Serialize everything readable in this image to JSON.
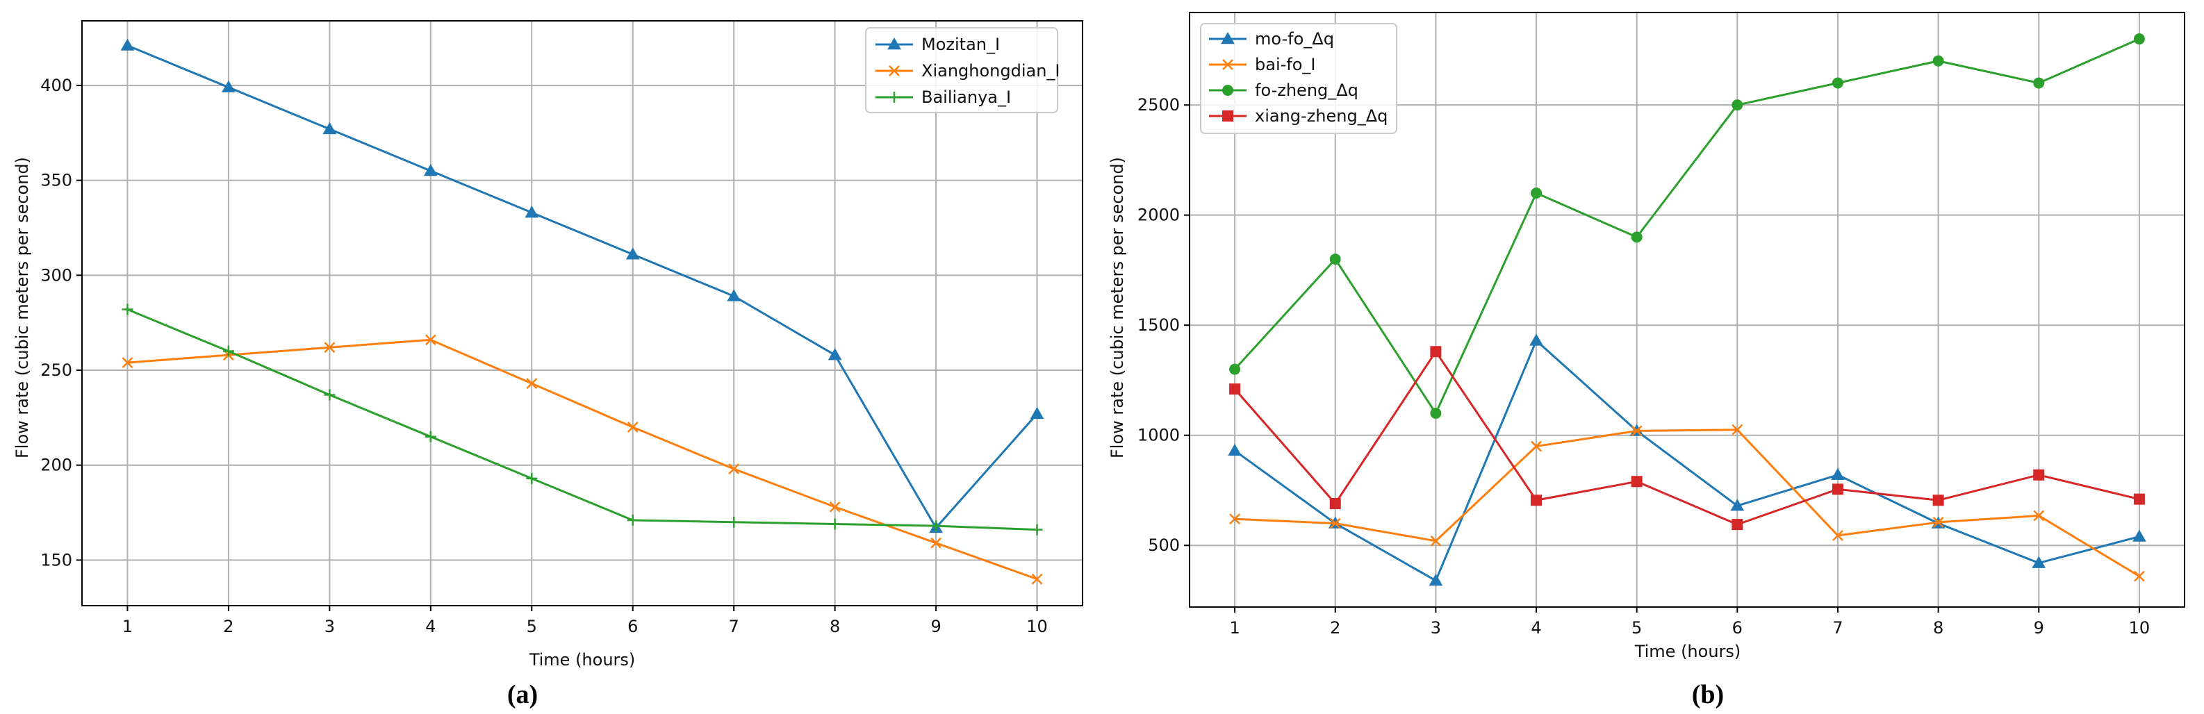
{
  "chart_data": [
    {
      "type": "line",
      "caption": "(a)",
      "title": "",
      "xlabel": "Time (hours)",
      "ylabel": "Flow rate (cubic meters per second)",
      "x": [
        1,
        2,
        3,
        4,
        5,
        6,
        7,
        8,
        9,
        10
      ],
      "xlim": [
        0.55,
        10.45
      ],
      "ylim": [
        126,
        434
      ],
      "xticks": [
        1,
        2,
        3,
        4,
        5,
        6,
        7,
        8,
        9,
        10
      ],
      "yticks": [
        150,
        200,
        250,
        300,
        350,
        400
      ],
      "grid": true,
      "legend_position": "top-right",
      "series": [
        {
          "name": "Mozitan_I",
          "color": "#1f77b4",
          "marker": "triangle",
          "values": [
            421,
            399,
            377,
            355,
            333,
            311,
            289,
            258,
            167,
            227
          ]
        },
        {
          "name": "Xianghongdian_I",
          "color": "#ff7f0e",
          "marker": "x",
          "values": [
            254,
            258,
            262,
            266,
            243,
            220,
            198,
            178,
            159,
            140
          ]
        },
        {
          "name": "Bailianya_I",
          "color": "#2ca02c",
          "marker": "plus",
          "values": [
            282,
            260,
            237,
            215,
            193,
            171,
            170,
            169,
            168,
            166
          ]
        }
      ]
    },
    {
      "type": "line",
      "caption": "(b)",
      "title": "",
      "xlabel": "Time (hours)",
      "ylabel": "Flow rate (cubic meters per second)",
      "x": [
        1,
        2,
        3,
        4,
        5,
        6,
        7,
        8,
        9,
        10
      ],
      "xlim": [
        0.55,
        10.45
      ],
      "ylim": [
        220,
        2920
      ],
      "xticks": [
        1,
        2,
        3,
        4,
        5,
        6,
        7,
        8,
        9,
        10
      ],
      "yticks": [
        500,
        1000,
        1500,
        2000,
        2500
      ],
      "grid": true,
      "legend_position": "top-left",
      "series": [
        {
          "name": "mo-fo_Δq",
          "color": "#1f77b4",
          "marker": "triangle",
          "values": [
            930,
            600,
            340,
            1430,
            1020,
            680,
            820,
            600,
            420,
            540
          ]
        },
        {
          "name": "bai-fo_I",
          "color": "#ff7f0e",
          "marker": "x",
          "values": [
            620,
            600,
            520,
            950,
            1020,
            1025,
            545,
            605,
            635,
            360
          ]
        },
        {
          "name": "fo-zheng_Δq",
          "color": "#2ca02c",
          "marker": "circle",
          "values": [
            1300,
            1800,
            1100,
            2100,
            1900,
            2500,
            2600,
            2700,
            2600,
            2800
          ]
        },
        {
          "name": "xiang-zheng_Δq",
          "color": "#d62728",
          "marker": "square",
          "values": [
            1210,
            690,
            1380,
            705,
            790,
            595,
            755,
            705,
            820,
            710
          ]
        }
      ]
    }
  ]
}
